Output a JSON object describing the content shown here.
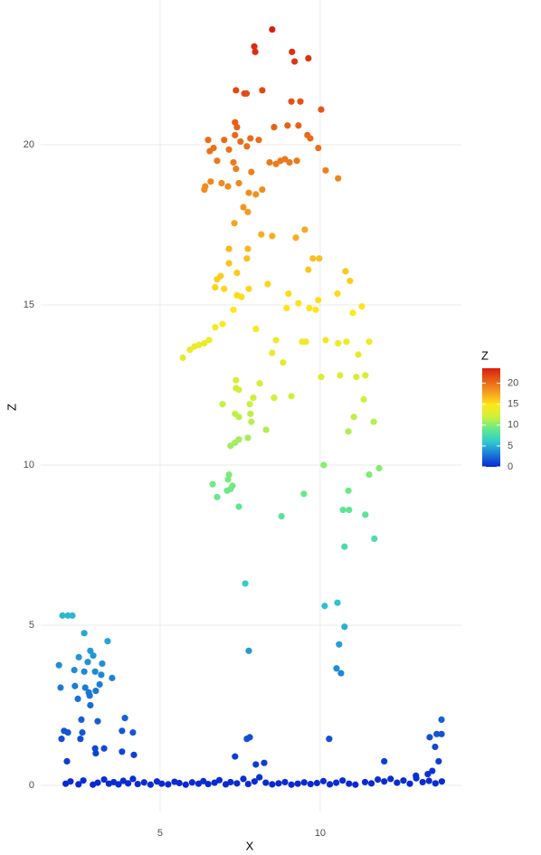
{
  "chart_data": {
    "type": "scatter",
    "x_label": "X",
    "y_label": "Z",
    "legend_title": "Z",
    "xlim": [
      1.27,
      14.41
    ],
    "ylim": [
      -0.82,
      24.52
    ],
    "xticks": [
      5,
      10
    ],
    "yticks": [
      0,
      5,
      10,
      15,
      20
    ],
    "grid": true,
    "color_lim": [
      0,
      23.6
    ],
    "color_ticks": [
      0,
      5,
      10,
      15,
      20
    ],
    "colormap": [
      "#0a28d2",
      "#1a78d8",
      "#30c8d0",
      "#60e890",
      "#c8f040",
      "#ffe818",
      "#f5a020",
      "#e86018",
      "#d81e10"
    ],
    "x": [
      8.5,
      7.94,
      7.97,
      9.12,
      9.2,
      9.63,
      7.37,
      7.63,
      7.7,
      8.19,
      9.1,
      9.38,
      10.03,
      7.34,
      7.4,
      8.56,
      8.98,
      9.32,
      6.5,
      7.0,
      7.34,
      7.51,
      7.82,
      8.08,
      9.6,
      9.69,
      6.67,
      6.55,
      7.15,
      7.71,
      9.94,
      6.78,
      7.29,
      8.42,
      8.62,
      8.76,
      8.9,
      9.04,
      9.27,
      10.17,
      7.37,
      7.85,
      6.41,
      6.58,
      6.92,
      7.12,
      7.46,
      10.56,
      6.38,
      7.77,
      8.19,
      7.99,
      7.6,
      7.74,
      7.32,
      8.16,
      8.5,
      9.52,
      9.24,
      7.15,
      7.74,
      9.77,
      9.97,
      7.15,
      7.71,
      9.63,
      10.79,
      10.93,
      6.78,
      6.89,
      7.4,
      6.72,
      8.36,
      7.0,
      7.77,
      7.4,
      7.54,
      9.01,
      9.94,
      10.54,
      7.29,
      9.32,
      9.66,
      9.86,
      11.02,
      11.3,
      8.95,
      6.95,
      6.72,
      7.99,
      5.71,
      5.93,
      6.07,
      6.21,
      6.38,
      6.53,
      8.62,
      9.44,
      9.55,
      10.17,
      10.56,
      10.82,
      11.53,
      8.5,
      8.84,
      11.19,
      10.03,
      10.62,
      11.13,
      11.41,
      7.37,
      7.37,
      7.46,
      8.11,
      6.95,
      7.8,
      7.91,
      8.56,
      9.1,
      11.36,
      7.34,
      7.46,
      7.82,
      7.85,
      11.05,
      11.67,
      8.31,
      10.88,
      7.46,
      7.34,
      7.74,
      7.2,
      10.11,
      11.84,
      11.53,
      7.15,
      7.12,
      6.64,
      7.26,
      7.2,
      7.09,
      6.78,
      9.49,
      10.88,
      7.46,
      10.71,
      10.9,
      11.41,
      8.79,
      11.69,
      10.76,
      7.66,
      10.54,
      10.14,
      10.76,
      10.59,
      7.77,
      10.51,
      10.65,
      10.28,
      7.71,
      7.8,
      7.34,
      8.25,
      7.99,
      12.0,
      1.95,
      2.12,
      2.26,
      2.63,
      3.36,
      1.84,
      2.46,
      2.82,
      2.91,
      2.74,
      3.19,
      2.32,
      2.63,
      3.16,
      3.5,
      2.97,
      1.89,
      2.34,
      2.66,
      2.77,
      2.8,
      2.99,
      3.11,
      2.43,
      2.82,
      2.54,
      3.9,
      3.05,
      2.0,
      2.12,
      2.57,
      3.81,
      4.15,
      1.92,
      2.51,
      2.97,
      3.25,
      2.99,
      3.81,
      4.18,
      2.09,
      13.79,
      13.64,
      13.79,
      13.42,
      13.59,
      13.7,
      13.5,
      12.99,
      13.36,
      2.05,
      2.2,
      2.45,
      2.6,
      2.9,
      3.05,
      3.25,
      3.4,
      3.55,
      3.7,
      3.85,
      4.0,
      4.15,
      4.3,
      4.5,
      4.7,
      4.9,
      5.05,
      5.25,
      5.45,
      5.6,
      5.8,
      6.0,
      6.2,
      6.35,
      6.5,
      6.7,
      6.85,
      7.05,
      7.2,
      7.4,
      7.6,
      7.75,
      7.95,
      8.1,
      8.3,
      8.5,
      8.7,
      8.9,
      9.1,
      9.3,
      9.5,
      9.7,
      9.9,
      10.1,
      10.3,
      10.5,
      10.7,
      10.9,
      11.1,
      11.4,
      11.6,
      11.8,
      12.0,
      12.2,
      12.4,
      12.6,
      12.8,
      13.0,
      13.2,
      13.4,
      13.6,
      13.8
    ],
    "y": [
      23.6,
      23.07,
      22.9,
      22.9,
      22.6,
      22.7,
      21.7,
      21.6,
      21.6,
      21.7,
      21.35,
      21.35,
      21.1,
      20.7,
      20.55,
      20.55,
      20.6,
      20.6,
      20.15,
      20.15,
      20.3,
      20.1,
      20.2,
      20.15,
      20.3,
      20.2,
      19.9,
      19.8,
      19.85,
      19.95,
      19.9,
      19.5,
      19.45,
      19.45,
      19.4,
      19.5,
      19.55,
      19.45,
      19.5,
      19.2,
      19.25,
      19.15,
      18.7,
      18.85,
      18.8,
      18.7,
      18.8,
      18.95,
      18.6,
      18.5,
      18.6,
      18.45,
      18.05,
      17.9,
      17.55,
      17.2,
      17.15,
      17.35,
      17.1,
      16.75,
      16.75,
      16.45,
      16.45,
      16.3,
      16.45,
      16.1,
      16.05,
      15.75,
      15.8,
      15.9,
      16.0,
      15.55,
      15.65,
      15.5,
      15.5,
      15.3,
      15.25,
      15.35,
      15.15,
      15.35,
      14.85,
      15.05,
      14.9,
      14.85,
      14.75,
      14.95,
      14.9,
      14.4,
      14.3,
      14.25,
      13.35,
      13.6,
      13.7,
      13.75,
      13.8,
      13.9,
      13.9,
      13.85,
      13.85,
      13.9,
      13.8,
      13.85,
      13.85,
      13.5,
      13.2,
      13.45,
      12.75,
      12.8,
      12.75,
      12.8,
      12.65,
      12.4,
      12.35,
      12.55,
      11.9,
      11.9,
      12.1,
      12.1,
      12.15,
      12.05,
      11.6,
      11.5,
      11.6,
      11.35,
      11.5,
      11.35,
      11.1,
      11.05,
      10.8,
      10.7,
      10.85,
      10.6,
      10.0,
      9.9,
      9.7,
      9.7,
      9.55,
      9.4,
      9.35,
      9.25,
      9.2,
      9.0,
      9.1,
      9.2,
      8.7,
      8.6,
      8.6,
      8.45,
      8.4,
      7.7,
      7.45,
      6.3,
      5.7,
      5.6,
      4.95,
      4.4,
      4.2,
      3.65,
      3.5,
      1.45,
      1.45,
      1.5,
      0.9,
      0.7,
      0.65,
      0.75,
      5.3,
      5.3,
      5.3,
      4.75,
      4.5,
      3.75,
      4.0,
      4.2,
      4.05,
      3.85,
      3.8,
      3.6,
      3.55,
      3.45,
      3.35,
      3.55,
      3.05,
      3.1,
      3.05,
      2.9,
      2.8,
      2.95,
      3.15,
      2.7,
      2.5,
      2.05,
      2.1,
      2.0,
      1.7,
      1.65,
      1.65,
      1.7,
      1.65,
      1.45,
      1.45,
      1.15,
      1.15,
      1.0,
      1.05,
      0.95,
      0.75,
      2.05,
      1.6,
      1.6,
      1.5,
      1.2,
      0.75,
      0.45,
      0.3,
      0.35,
      0.05,
      0.12,
      0.03,
      0.15,
      0.02,
      0.08,
      0.18,
      0.05,
      0.1,
      0.03,
      0.14,
      0.06,
      0.2,
      0.04,
      0.09,
      0.02,
      0.12,
      0.05,
      0.03,
      0.11,
      0.07,
      0.02,
      0.09,
      0.05,
      0.13,
      0.04,
      0.08,
      0.16,
      0.03,
      0.1,
      0.06,
      0.2,
      0.04,
      0.12,
      0.25,
      0.08,
      0.03,
      0.06,
      0.1,
      0.02,
      0.05,
      0.09,
      0.04,
      0.07,
      0.13,
      0.03,
      0.08,
      0.15,
      0.05,
      0.02,
      0.1,
      0.06,
      0.18,
      0.12,
      0.2,
      0.08,
      0.15,
      0.05,
      0.22,
      0.1,
      0.14,
      0.06,
      0.12
    ]
  }
}
